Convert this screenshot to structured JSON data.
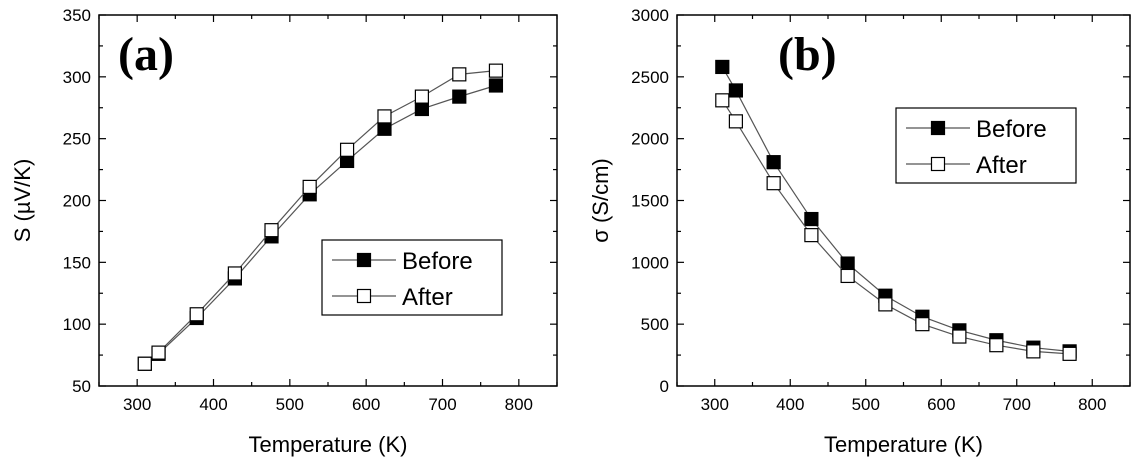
{
  "chart_data": [
    {
      "type": "line",
      "panel_label": "(a)",
      "title": "",
      "xlabel": "Temperature (K)",
      "ylabel": "S (µV/K)",
      "xlim": [
        250,
        850
      ],
      "ylim": [
        50,
        350
      ],
      "xticks": [
        300,
        400,
        500,
        600,
        700,
        800
      ],
      "yticks": [
        50,
        100,
        150,
        200,
        250,
        300,
        350
      ],
      "grid": false,
      "legend": "lower-right",
      "series": [
        {
          "name": "Before",
          "marker": "filled-square",
          "x": [
            310,
            328,
            378,
            428,
            476,
            526,
            575,
            624,
            673,
            722,
            770
          ],
          "y": [
            68,
            76,
            105,
            137,
            171,
            205,
            232,
            258,
            274,
            284,
            293
          ]
        },
        {
          "name": "After",
          "marker": "open-square",
          "x": [
            310,
            328,
            378,
            428,
            476,
            526,
            575,
            624,
            673,
            722,
            770
          ],
          "y": [
            68,
            77,
            108,
            141,
            176,
            211,
            241,
            268,
            284,
            302,
            305
          ]
        }
      ]
    },
    {
      "type": "line",
      "panel_label": "(b)",
      "title": "",
      "xlabel": "Temperature (K)",
      "ylabel": "σ (S/cm)",
      "xlim": [
        250,
        850
      ],
      "ylim": [
        0,
        3000
      ],
      "xticks": [
        300,
        400,
        500,
        600,
        700,
        800
      ],
      "yticks": [
        0,
        500,
        1000,
        1500,
        2000,
        2500,
        3000
      ],
      "grid": false,
      "legend": "top-right",
      "series": [
        {
          "name": "Before",
          "marker": "filled-square",
          "x": [
            310,
            328,
            378,
            428,
            476,
            526,
            575,
            624,
            673,
            722,
            770
          ],
          "y": [
            2580,
            2390,
            1810,
            1350,
            990,
            730,
            560,
            450,
            370,
            310,
            280
          ]
        },
        {
          "name": "After",
          "marker": "open-square",
          "x": [
            310,
            328,
            378,
            428,
            476,
            526,
            575,
            624,
            673,
            722,
            770
          ],
          "y": [
            2310,
            2140,
            1640,
            1220,
            890,
            660,
            500,
            400,
            330,
            280,
            260
          ]
        }
      ]
    }
  ]
}
